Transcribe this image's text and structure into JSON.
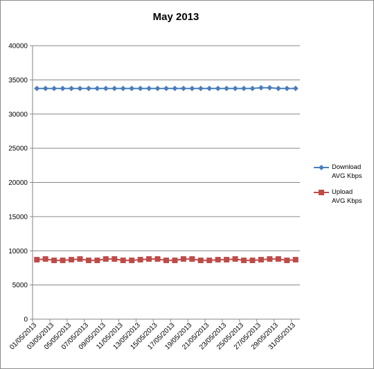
{
  "chart_data": {
    "type": "line",
    "title": "May 2013",
    "xlabel": "",
    "ylabel": "",
    "ylim": [
      0,
      40000
    ],
    "yticks": [
      0,
      5000,
      10000,
      15000,
      20000,
      25000,
      30000,
      35000,
      40000
    ],
    "ytick_labels": [
      "0",
      "5000",
      "10000",
      "15000",
      "20000",
      "25000",
      "30000",
      "35000",
      "40000"
    ],
    "grid": true,
    "legend_position": "right",
    "categories": [
      "01/05/2013",
      "02/05/2013",
      "03/05/2013",
      "04/05/2013",
      "05/05/2013",
      "06/05/2013",
      "07/05/2013",
      "08/05/2013",
      "09/05/2013",
      "10/05/2013",
      "11/05/2013",
      "12/05/2013",
      "13/05/2013",
      "14/05/2013",
      "15/05/2013",
      "16/05/2013",
      "17/05/2013",
      "18/05/2013",
      "19/05/2013",
      "20/05/2013",
      "21/05/2013",
      "22/05/2013",
      "23/05/2013",
      "24/05/2013",
      "25/05/2013",
      "26/05/2013",
      "27/05/2013",
      "28/05/2013",
      "29/05/2013",
      "30/05/2013",
      "31/05/2013"
    ],
    "xtick_labels": [
      "01/05/2013",
      "03/05/2013",
      "05/05/2013",
      "07/05/2013",
      "09/05/2013",
      "11/05/2013",
      "13/05/2013",
      "15/05/2013",
      "17/05/2013",
      "19/05/2013",
      "21/05/2013",
      "23/05/2013",
      "25/05/2013",
      "27/05/2013",
      "29/05/2013",
      "31/05/2013"
    ],
    "series": [
      {
        "name": "Download AVG Kbps",
        "name_lines": [
          "Download",
          "AVG Kbps"
        ],
        "color": "#4a7ebb",
        "marker": "diamond",
        "values": [
          33750,
          33750,
          33750,
          33750,
          33750,
          33750,
          33750,
          33750,
          33750,
          33750,
          33750,
          33750,
          33750,
          33750,
          33750,
          33750,
          33750,
          33750,
          33750,
          33750,
          33750,
          33750,
          33750,
          33750,
          33750,
          33750,
          33850,
          33850,
          33750,
          33750,
          33750
        ]
      },
      {
        "name": "Upload AVG Kbps",
        "name_lines": [
          "Upload",
          "AVG Kbps"
        ],
        "color": "#be4b48",
        "marker": "square",
        "values": [
          8700,
          8800,
          8600,
          8600,
          8700,
          8800,
          8600,
          8600,
          8800,
          8800,
          8600,
          8600,
          8700,
          8800,
          8800,
          8600,
          8600,
          8800,
          8800,
          8600,
          8600,
          8700,
          8700,
          8800,
          8600,
          8600,
          8700,
          8800,
          8800,
          8600,
          8700
        ]
      }
    ]
  }
}
